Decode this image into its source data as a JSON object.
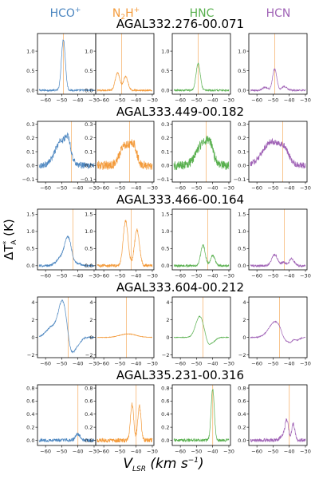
{
  "chart_data": {
    "type": "line",
    "molecules": [
      {
        "label": "HCO",
        "charge": "+",
        "sub": "",
        "color": "#4c86c0"
      },
      {
        "label": "N",
        "sub": "2",
        "after": "H",
        "charge": "+",
        "color": "#f39a3a"
      },
      {
        "label": "HNC",
        "sub": "",
        "charge": "",
        "color": "#59b04f"
      },
      {
        "label": "HCN",
        "sub": "",
        "charge": "",
        "color": "#a063b6"
      }
    ],
    "ylabel": {
      "main": "ΔT",
      "star": "*",
      "sub": "A",
      "unit": " (K)"
    },
    "xlabel": {
      "main": "V",
      "sub": "LSR",
      "unit": " (km s",
      "exp": "−1",
      "close": ")"
    },
    "x_ticks": [
      -60,
      -50,
      -40,
      -30
    ],
    "xlim": [
      -65,
      -29
    ],
    "marker_color": "#f7b774",
    "rows": [
      {
        "source": "AGAL332.276-00.071",
        "ylim": [
          -0.1,
          1.45
        ],
        "y_ticks": [
          0.0,
          0.5,
          1.0
        ],
        "y_tick_labels": [
          "0.0",
          "0.5",
          "1.0"
        ],
        "vline": -49,
        "panels": [
          {
            "noise": 0.02,
            "baseline": 0,
            "components": [
              [
                -49,
                1.3,
                1.2
              ]
            ]
          },
          {
            "noise": 0.02,
            "baseline": 0,
            "components": [
              [
                -51.5,
                0.45,
                1.4
              ],
              [
                -46.5,
                0.35,
                1.4
              ]
            ]
          },
          {
            "noise": 0.02,
            "baseline": 0,
            "components": [
              [
                -49,
                0.68,
                1.3
              ]
            ]
          },
          {
            "noise": 0.02,
            "baseline": 0,
            "components": [
              [
                -49,
                0.55,
                1.3
              ],
              [
                -43,
                0.1,
                1.5
              ],
              [
                -55,
                0.08,
                1.5
              ]
            ]
          }
        ]
      },
      {
        "source": "AGAL333.449-00.182",
        "ylim": [
          -0.12,
          0.32
        ],
        "y_ticks": [
          -0.1,
          0.0,
          0.1,
          0.2,
          0.3
        ],
        "y_tick_labels": [
          "-0.1",
          "0.0",
          "0.1",
          "0.2",
          "0.3"
        ],
        "vline": -44,
        "panels": [
          {
            "noise": 0.02,
            "baseline": 0,
            "components": [
              [
                -50,
                0.18,
                4.0
              ],
              [
                -46,
                0.1,
                1.5
              ]
            ]
          },
          {
            "noise": 0.03,
            "baseline": 0,
            "components": [
              [
                -47,
                0.15,
                3.0
              ],
              [
                -41.5,
                0.13,
                2.0
              ]
            ]
          },
          {
            "noise": 0.03,
            "baseline": 0,
            "components": [
              [
                -46,
                0.16,
                4.0
              ],
              [
                -41.5,
                0.09,
                2.0
              ]
            ]
          },
          {
            "noise": 0.02,
            "baseline": 0,
            "components": [
              [
                -51,
                0.17,
                5.5
              ],
              [
                -43,
                0.08,
                3.0
              ]
            ]
          }
        ]
      },
      {
        "source": "AGAL333.466-00.164",
        "ylim": [
          -0.12,
          1.65
        ],
        "y_ticks": [
          0.0,
          0.5,
          1.0,
          1.5
        ],
        "y_tick_labels": [
          "0.0",
          "0.5",
          "1.0",
          "1.5"
        ],
        "vline": -43,
        "panels": [
          {
            "noise": 0.03,
            "baseline": 0,
            "components": [
              [
                -46,
                0.75,
                2.0
              ],
              [
                -50,
                0.25,
                3.0
              ],
              [
                -40,
                0.06,
                2.0
              ]
            ]
          },
          {
            "noise": 0.04,
            "baseline": 0,
            "components": [
              [
                -46.5,
                1.3,
                1.5
              ],
              [
                -39.5,
                1.05,
                1.5
              ]
            ]
          },
          {
            "noise": 0.03,
            "baseline": 0,
            "components": [
              [
                -46,
                0.6,
                1.4
              ],
              [
                -40,
                0.3,
                1.4
              ]
            ]
          },
          {
            "noise": 0.03,
            "baseline": 0,
            "components": [
              [
                -49,
                0.32,
                1.8
              ],
              [
                -43.5,
                0.1,
                1.2
              ],
              [
                -38.5,
                0.2,
                1.5
              ]
            ]
          }
        ]
      },
      {
        "source": "AGAL333.604-00.212",
        "ylim": [
          -2.3,
          4.6
        ],
        "y_ticks": [
          -2,
          0,
          2,
          4
        ],
        "y_tick_labels": [
          "-2",
          "0",
          "2",
          "4"
        ],
        "vline": -46,
        "panels": [
          {
            "noise": 0.08,
            "baseline": 0,
            "components": [
              [
                -49.5,
                4.0,
                2.5
              ],
              [
                -56,
                1.2,
                3.5
              ],
              [
                -44,
                -1.8,
                2.0
              ],
              [
                -40,
                -0.7,
                2.0
              ]
            ]
          },
          {
            "noise": 0.03,
            "baseline": 0,
            "components": [
              [
                -45,
                0.4,
                5.0
              ]
            ]
          },
          {
            "noise": 0.04,
            "baseline": 0,
            "components": [
              [
                -48,
                2.4,
                2.5
              ],
              [
                -42.5,
                -0.9,
                1.8
              ],
              [
                -39,
                -0.3,
                1.5
              ]
            ]
          },
          {
            "noise": 0.05,
            "baseline": 0,
            "components": [
              [
                -48.5,
                1.8,
                4.0
              ],
              [
                -43,
                -0.8,
                1.8
              ],
              [
                -39.5,
                -0.6,
                1.5
              ],
              [
                -35,
                -0.3,
                1.5
              ]
            ]
          }
        ]
      },
      {
        "source": "AGAL335.231-00.316",
        "ylim": [
          -0.08,
          0.85
        ],
        "y_ticks": [
          0.0,
          0.2,
          0.4,
          0.6,
          0.8
        ],
        "y_tick_labels": [
          "0.0",
          "0.2",
          "0.4",
          "0.6",
          "0.8"
        ],
        "vline": -40,
        "panels": [
          {
            "noise": 0.025,
            "baseline": 0,
            "components": [
              [
                -40,
                0.09,
                1.5
              ]
            ]
          },
          {
            "noise": 0.03,
            "baseline": 0,
            "components": [
              [
                -42.5,
                0.55,
                1.0
              ],
              [
                -38,
                0.52,
                1.0
              ]
            ]
          },
          {
            "noise": 0.02,
            "baseline": 0,
            "components": [
              [
                -40,
                0.78,
                1.0
              ]
            ]
          },
          {
            "noise": 0.025,
            "baseline": 0,
            "components": [
              [
                -41.5,
                0.3,
                1.0
              ],
              [
                -37.5,
                0.25,
                1.0
              ],
              [
                -44,
                0.08,
                1.5
              ]
            ]
          }
        ]
      }
    ]
  }
}
